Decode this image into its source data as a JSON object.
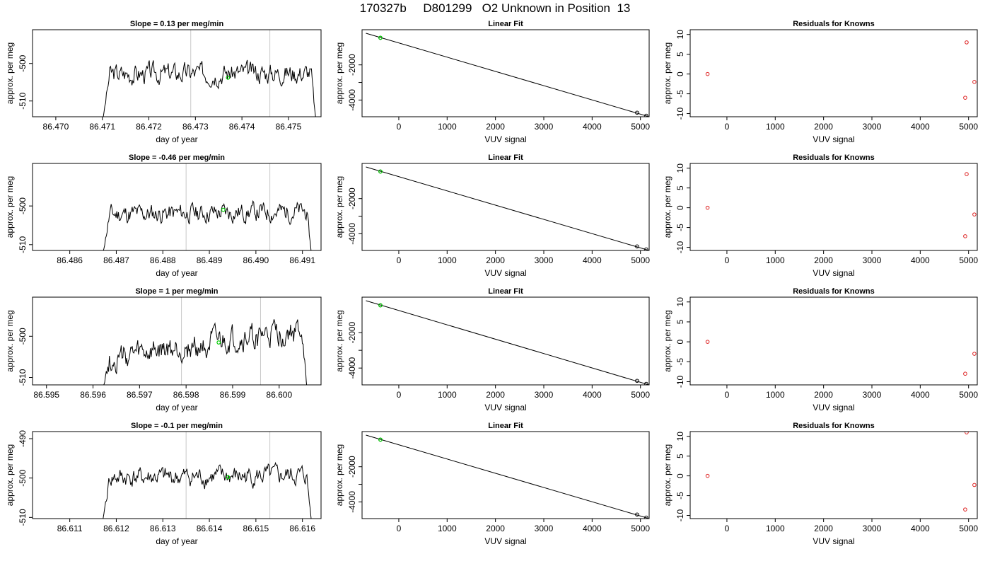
{
  "figure_title": "170327b     D801299   O2 Unknown in Position  13",
  "chart_data": [
    {
      "type": "line",
      "title": "Slope =  0.13  per meg/min",
      "xlabel": "day of year",
      "ylabel": "approx. per meg",
      "xlim": [
        86.4695,
        86.4757
      ],
      "ylim": [
        -514.2,
        -491.0
      ],
      "xticks": [
        86.47,
        86.471,
        86.472,
        86.473,
        86.474,
        86.475
      ],
      "xtick_labels": [
        "86.470",
        "86.471",
        "86.472",
        "86.473",
        "86.474",
        "86.475"
      ],
      "yticks": [
        -510,
        -500
      ],
      "ytick_labels": [
        "-510",
        "-500"
      ],
      "vlines": [
        86.4729,
        86.4746
      ],
      "grid": false,
      "highlight": {
        "x": 86.4737,
        "y": -503.8,
        "color": "#00cc00"
      },
      "series": [
        {
          "x_start": 86.471,
          "x_end": 86.4756,
          "base": -502.8,
          "trend": 0.5,
          "start_y": -516.0,
          "end_y": -517.0,
          "amp": 2.2,
          "seed": 3
        }
      ]
    },
    {
      "type": "scatter",
      "title": "Linear Fit",
      "xlabel": "VUV signal",
      "ylabel": "approx. per meg",
      "xlim": [
        -760,
        5180
      ],
      "ylim": [
        -4950,
        0
      ],
      "xticks": [
        0,
        1000,
        2000,
        3000,
        4000,
        5000
      ],
      "xtick_labels": [
        "0",
        "1000",
        "2000",
        "3000",
        "4000",
        "5000"
      ],
      "yticks": [
        -4000,
        -3000,
        -2000
      ],
      "ytick_labels": [
        "-4000",
        "",
        "-2000"
      ],
      "fit_line": [
        [
          -680,
          -200
        ],
        [
          5180,
          -4950
        ]
      ],
      "points": [
        {
          "x": -380,
          "y": -460
        },
        {
          "x": 4930,
          "y": -4720
        },
        {
          "x": 5120,
          "y": -4890
        }
      ],
      "highlight": {
        "x": -380,
        "y": -460,
        "color": "#00cc00"
      }
    },
    {
      "type": "scatter",
      "title": "Residuals for Knowns",
      "xlabel": "VUV signal",
      "ylabel": "approx. per meg",
      "xlim": [
        -760,
        5180
      ],
      "ylim": [
        -10.8,
        11.2
      ],
      "xticks": [
        0,
        1000,
        2000,
        3000,
        4000,
        5000
      ],
      "xtick_labels": [
        "0",
        "1000",
        "2000",
        "3000",
        "4000",
        "5000"
      ],
      "yticks": [
        -10,
        -5,
        0,
        5,
        10
      ],
      "ytick_labels": [
        "-10",
        "-5",
        "0",
        "5",
        "10"
      ],
      "points": [
        {
          "x": -400,
          "y": 0
        },
        {
          "x": 4960,
          "y": 8
        },
        {
          "x": 5120,
          "y": -2
        },
        {
          "x": 4930,
          "y": -6
        }
      ],
      "point_color": "#dd2222"
    },
    {
      "type": "line",
      "title": "Slope =  -0.46  per meg/min",
      "xlabel": "day of year",
      "ylabel": "approx. per meg",
      "xlim": [
        86.4852,
        86.4914
      ],
      "ylim": [
        -511.5,
        -489.0
      ],
      "xticks": [
        86.486,
        86.487,
        86.488,
        86.489,
        86.49,
        86.491
      ],
      "xtick_labels": [
        "86.486",
        "86.487",
        "86.488",
        "86.489",
        "86.490",
        "86.491"
      ],
      "yticks": [
        -510,
        -500
      ],
      "ytick_labels": [
        "-510",
        "-500"
      ],
      "vlines": [
        86.4885,
        86.4903
      ],
      "grid": false,
      "highlight": {
        "x": 86.4893,
        "y": -501.0,
        "color": "#00cc00"
      },
      "series": [
        {
          "x_start": 86.4867,
          "x_end": 86.4912,
          "base": -502.2,
          "trend": 0.8,
          "start_y": -513.0,
          "end_y": -513.0,
          "amp": 2.0,
          "seed": 11
        }
      ]
    },
    {
      "type": "scatter",
      "title": "Linear Fit",
      "xlabel": "VUV signal",
      "ylabel": "approx. per meg",
      "xlim": [
        -760,
        5180
      ],
      "ylim": [
        -4950,
        0
      ],
      "xticks": [
        0,
        1000,
        2000,
        3000,
        4000,
        5000
      ],
      "xtick_labels": [
        "0",
        "1000",
        "2000",
        "3000",
        "4000",
        "5000"
      ],
      "yticks": [
        -4000,
        -3000,
        -2000
      ],
      "ytick_labels": [
        "-4000",
        "",
        "-2000"
      ],
      "fit_line": [
        [
          -680,
          -200
        ],
        [
          5180,
          -4950
        ]
      ],
      "points": [
        {
          "x": -380,
          "y": -460
        },
        {
          "x": 4930,
          "y": -4720
        },
        {
          "x": 5120,
          "y": -4890
        }
      ],
      "highlight": {
        "x": -380,
        "y": -460,
        "color": "#00cc00"
      }
    },
    {
      "type": "scatter",
      "title": "Residuals for Knowns",
      "xlabel": "VUV signal",
      "ylabel": "approx. per meg",
      "xlim": [
        -760,
        5180
      ],
      "ylim": [
        -10.8,
        11.2
      ],
      "xticks": [
        0,
        1000,
        2000,
        3000,
        4000,
        5000
      ],
      "xtick_labels": [
        "0",
        "1000",
        "2000",
        "3000",
        "4000",
        "5000"
      ],
      "yticks": [
        -10,
        -5,
        0,
        5,
        10
      ],
      "ytick_labels": [
        "-10",
        "-5",
        "0",
        "5",
        "10"
      ],
      "points": [
        {
          "x": -400,
          "y": 0
        },
        {
          "x": 4960,
          "y": 8.5
        },
        {
          "x": 5120,
          "y": -1.7
        },
        {
          "x": 4930,
          "y": -7.2
        }
      ],
      "point_color": "#dd2222"
    },
    {
      "type": "line",
      "title": "Slope =  1  per meg/min",
      "xlabel": "day of year",
      "ylabel": "approx. per meg",
      "xlim": [
        86.5947,
        86.6009
      ],
      "ylim": [
        -511.8,
        -490.5
      ],
      "xticks": [
        86.595,
        86.596,
        86.597,
        86.598,
        86.599,
        86.6
      ],
      "xtick_labels": [
        "86.595",
        "86.596",
        "86.597",
        "86.598",
        "86.599",
        "86.600"
      ],
      "yticks": [
        -510,
        -500
      ],
      "ytick_labels": [
        "-510",
        "-500"
      ],
      "vlines": [
        86.5979,
        86.5996
      ],
      "grid": false,
      "highlight": {
        "x": 86.5987,
        "y": -501.5,
        "color": "#00cc00"
      },
      "series": [
        {
          "x_start": 86.5962,
          "x_end": 86.6006,
          "base": -506.0,
          "trend": 7.5,
          "start_y": -513.0,
          "end_y": -513.0,
          "amp": 2.5,
          "seed": 27
        }
      ]
    },
    {
      "type": "scatter",
      "title": "Linear Fit",
      "xlabel": "VUV signal",
      "ylabel": "approx. per meg",
      "xlim": [
        -760,
        5180
      ],
      "ylim": [
        -4950,
        0
      ],
      "xticks": [
        0,
        1000,
        2000,
        3000,
        4000,
        5000
      ],
      "xtick_labels": [
        "0",
        "1000",
        "2000",
        "3000",
        "4000",
        "5000"
      ],
      "yticks": [
        -4000,
        -3000,
        -2000
      ],
      "ytick_labels": [
        "-4000",
        "",
        "-2000"
      ],
      "fit_line": [
        [
          -680,
          -200
        ],
        [
          5180,
          -4950
        ]
      ],
      "points": [
        {
          "x": -380,
          "y": -460
        },
        {
          "x": 4930,
          "y": -4720
        },
        {
          "x": 5120,
          "y": -4890
        }
      ],
      "highlight": {
        "x": -380,
        "y": -460,
        "color": "#00cc00"
      }
    },
    {
      "type": "scatter",
      "title": "Residuals for Knowns",
      "xlabel": "VUV signal",
      "ylabel": "approx. per meg",
      "xlim": [
        -760,
        5180
      ],
      "ylim": [
        -10.8,
        11.2
      ],
      "xticks": [
        0,
        1000,
        2000,
        3000,
        4000,
        5000
      ],
      "xtick_labels": [
        "0",
        "1000",
        "2000",
        "3000",
        "4000",
        "5000"
      ],
      "yticks": [
        -10,
        -5,
        0,
        5,
        10
      ],
      "ytick_labels": [
        "-10",
        "-5",
        "0",
        "5",
        "10"
      ],
      "points": [
        {
          "x": -400,
          "y": 0
        },
        {
          "x": 5120,
          "y": -3
        },
        {
          "x": 4930,
          "y": -8
        }
      ],
      "point_color": "#dd2222"
    },
    {
      "type": "line",
      "title": "Slope =  -0.1  per meg/min",
      "xlabel": "day of year",
      "ylabel": "approx. per meg",
      "xlim": [
        86.6102,
        86.6164
      ],
      "ylim": [
        -510.3,
        -488.2
      ],
      "xticks": [
        86.611,
        86.612,
        86.613,
        86.614,
        86.615,
        86.616
      ],
      "xtick_labels": [
        "86.611",
        "86.612",
        "86.613",
        "86.614",
        "86.615",
        "86.616"
      ],
      "yticks": [
        -510,
        -500,
        -490
      ],
      "ytick_labels": [
        "-510",
        "-500",
        "-490"
      ],
      "vlines": [
        86.6135,
        86.6153
      ],
      "grid": false,
      "highlight": {
        "x": 86.6144,
        "y": -499.8,
        "color": "#00cc00"
      },
      "series": [
        {
          "x_start": 86.6117,
          "x_end": 86.6162,
          "base": -500.0,
          "trend": 0.6,
          "start_y": -511.5,
          "end_y": -511.5,
          "amp": 2.0,
          "seed": 41
        }
      ]
    },
    {
      "type": "scatter",
      "title": "Linear Fit",
      "xlabel": "VUV signal",
      "ylabel": "approx. per meg",
      "xlim": [
        -760,
        5180
      ],
      "ylim": [
        -4950,
        0
      ],
      "xticks": [
        0,
        1000,
        2000,
        3000,
        4000,
        5000
      ],
      "xtick_labels": [
        "0",
        "1000",
        "2000",
        "3000",
        "4000",
        "5000"
      ],
      "yticks": [
        -4000,
        -3000,
        -2000
      ],
      "ytick_labels": [
        "-4000",
        "",
        "-2000"
      ],
      "fit_line": [
        [
          -680,
          -200
        ],
        [
          5180,
          -4950
        ]
      ],
      "points": [
        {
          "x": -380,
          "y": -460
        },
        {
          "x": 4930,
          "y": -4720
        },
        {
          "x": 5120,
          "y": -4890
        }
      ],
      "highlight": {
        "x": -380,
        "y": -460,
        "color": "#00cc00"
      }
    },
    {
      "type": "scatter",
      "title": "Residuals for Knowns",
      "xlabel": "VUV signal",
      "ylabel": "approx. per meg",
      "xlim": [
        -760,
        5180
      ],
      "ylim": [
        -10.8,
        11.2
      ],
      "xticks": [
        0,
        1000,
        2000,
        3000,
        4000,
        5000
      ],
      "xtick_labels": [
        "0",
        "1000",
        "2000",
        "3000",
        "4000",
        "5000"
      ],
      "yticks": [
        -10,
        -5,
        0,
        5,
        10
      ],
      "ytick_labels": [
        "-10",
        "-5",
        "0",
        "5",
        "10"
      ],
      "points": [
        {
          "x": -400,
          "y": 0
        },
        {
          "x": 4960,
          "y": 11
        },
        {
          "x": 5120,
          "y": -2.3
        },
        {
          "x": 4930,
          "y": -8.5
        }
      ],
      "point_color": "#dd2222"
    }
  ]
}
